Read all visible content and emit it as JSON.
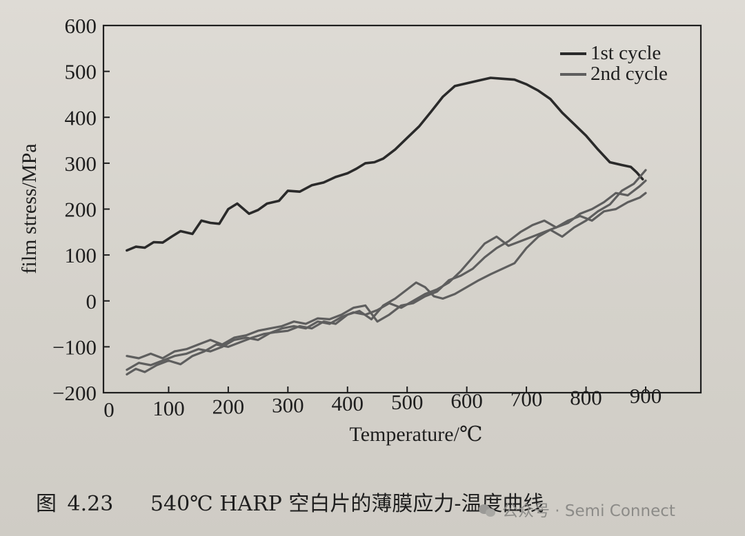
{
  "chart_data": {
    "type": "line",
    "title": "",
    "xlabel": "Temperature/℃",
    "ylabel": "film stress/MPa",
    "xlim": [
      0,
      1000
    ],
    "ylim": [
      -200,
      600
    ],
    "xticks": [
      0,
      100,
      200,
      300,
      400,
      500,
      600,
      700,
      800,
      900
    ],
    "yticks": [
      600,
      500,
      400,
      300,
      200,
      100,
      0,
      -100,
      -200
    ],
    "grid": false,
    "legend": "top-right",
    "legend_entries": [
      "1st cycle",
      "2nd cycle"
    ],
    "series": [
      {
        "name": "1st cycle",
        "color": "#2a2a2a",
        "points": [
          [
            30,
            110
          ],
          [
            45,
            118
          ],
          [
            60,
            116
          ],
          [
            75,
            128
          ],
          [
            90,
            127
          ],
          [
            105,
            140
          ],
          [
            120,
            152
          ],
          [
            140,
            146
          ],
          [
            155,
            175
          ],
          [
            170,
            170
          ],
          [
            185,
            168
          ],
          [
            200,
            200
          ],
          [
            215,
            212
          ],
          [
            235,
            190
          ],
          [
            250,
            198
          ],
          [
            265,
            212
          ],
          [
            285,
            218
          ],
          [
            300,
            240
          ],
          [
            320,
            238
          ],
          [
            340,
            252
          ],
          [
            360,
            258
          ],
          [
            380,
            270
          ],
          [
            400,
            278
          ],
          [
            415,
            288
          ],
          [
            430,
            300
          ],
          [
            445,
            302
          ],
          [
            460,
            310
          ],
          [
            480,
            330
          ],
          [
            500,
            355
          ],
          [
            520,
            380
          ],
          [
            540,
            412
          ],
          [
            560,
            445
          ],
          [
            580,
            468
          ],
          [
            600,
            474
          ],
          [
            620,
            480
          ],
          [
            640,
            486
          ],
          [
            660,
            484
          ],
          [
            680,
            482
          ],
          [
            700,
            472
          ],
          [
            720,
            458
          ],
          [
            740,
            440
          ],
          [
            760,
            410
          ],
          [
            780,
            385
          ],
          [
            800,
            360
          ],
          [
            820,
            330
          ],
          [
            840,
            302
          ],
          [
            860,
            296
          ],
          [
            875,
            292
          ],
          [
            885,
            280
          ],
          [
            895,
            265
          ]
        ]
      },
      {
        "name": "2nd cycle",
        "color": "#5e5e5e",
        "points": [
          [
            30,
            -160
          ],
          [
            45,
            -148
          ],
          [
            60,
            -155
          ],
          [
            80,
            -140
          ],
          [
            100,
            -130
          ],
          [
            120,
            -138
          ],
          [
            140,
            -120
          ],
          [
            160,
            -110
          ],
          [
            180,
            -95
          ],
          [
            200,
            -100
          ],
          [
            220,
            -90
          ],
          [
            240,
            -80
          ],
          [
            260,
            -72
          ],
          [
            280,
            -68
          ],
          [
            300,
            -65
          ],
          [
            320,
            -55
          ],
          [
            340,
            -60
          ],
          [
            360,
            -45
          ],
          [
            380,
            -50
          ],
          [
            400,
            -30
          ],
          [
            420,
            -22
          ],
          [
            440,
            -40
          ],
          [
            460,
            -10
          ],
          [
            480,
            5
          ],
          [
            500,
            25
          ],
          [
            515,
            40
          ],
          [
            530,
            30
          ],
          [
            545,
            10
          ],
          [
            560,
            5
          ],
          [
            580,
            15
          ],
          [
            600,
            30
          ],
          [
            620,
            45
          ],
          [
            640,
            58
          ],
          [
            660,
            70
          ],
          [
            680,
            82
          ],
          [
            700,
            115
          ],
          [
            720,
            140
          ],
          [
            740,
            155
          ],
          [
            760,
            140
          ],
          [
            780,
            160
          ],
          [
            800,
            175
          ],
          [
            820,
            195
          ],
          [
            840,
            210
          ],
          [
            860,
            240
          ],
          [
            880,
            255
          ],
          [
            890,
            270
          ],
          [
            900,
            285
          ]
        ]
      },
      {
        "name": "",
        "color": "#5e5e5e",
        "points": [
          [
            30,
            -120
          ],
          [
            50,
            -125
          ],
          [
            70,
            -115
          ],
          [
            90,
            -125
          ],
          [
            110,
            -110
          ],
          [
            130,
            -105
          ],
          [
            150,
            -95
          ],
          [
            170,
            -85
          ],
          [
            190,
            -95
          ],
          [
            210,
            -80
          ],
          [
            230,
            -75
          ],
          [
            250,
            -65
          ],
          [
            270,
            -60
          ],
          [
            290,
            -55
          ],
          [
            310,
            -45
          ],
          [
            330,
            -50
          ],
          [
            350,
            -38
          ],
          [
            370,
            -40
          ],
          [
            390,
            -30
          ],
          [
            410,
            -15
          ],
          [
            430,
            -10
          ],
          [
            450,
            -45
          ],
          [
            470,
            -30
          ],
          [
            490,
            -10
          ],
          [
            510,
            -5
          ],
          [
            530,
            10
          ],
          [
            550,
            20
          ],
          [
            570,
            45
          ],
          [
            590,
            55
          ],
          [
            610,
            70
          ],
          [
            630,
            95
          ],
          [
            650,
            115
          ],
          [
            670,
            130
          ],
          [
            690,
            150
          ],
          [
            710,
            165
          ],
          [
            730,
            175
          ],
          [
            750,
            160
          ],
          [
            770,
            170
          ],
          [
            790,
            190
          ],
          [
            810,
            200
          ],
          [
            830,
            215
          ],
          [
            850,
            235
          ],
          [
            870,
            230
          ],
          [
            890,
            250
          ],
          [
            900,
            262
          ]
        ]
      },
      {
        "name": "",
        "color": "#5e5e5e",
        "points": [
          [
            30,
            -150
          ],
          [
            50,
            -135
          ],
          [
            70,
            -140
          ],
          [
            90,
            -130
          ],
          [
            110,
            -120
          ],
          [
            130,
            -115
          ],
          [
            150,
            -105
          ],
          [
            170,
            -110
          ],
          [
            190,
            -100
          ],
          [
            210,
            -85
          ],
          [
            230,
            -80
          ],
          [
            250,
            -85
          ],
          [
            270,
            -70
          ],
          [
            290,
            -60
          ],
          [
            310,
            -55
          ],
          [
            330,
            -60
          ],
          [
            350,
            -45
          ],
          [
            370,
            -50
          ],
          [
            390,
            -35
          ],
          [
            410,
            -25
          ],
          [
            430,
            -30
          ],
          [
            450,
            -20
          ],
          [
            470,
            -5
          ],
          [
            490,
            -15
          ],
          [
            510,
            0
          ],
          [
            530,
            15
          ],
          [
            550,
            25
          ],
          [
            570,
            40
          ],
          [
            590,
            65
          ],
          [
            610,
            95
          ],
          [
            630,
            125
          ],
          [
            650,
            140
          ],
          [
            670,
            120
          ],
          [
            690,
            130
          ],
          [
            710,
            140
          ],
          [
            730,
            150
          ],
          [
            750,
            160
          ],
          [
            770,
            175
          ],
          [
            790,
            185
          ],
          [
            810,
            175
          ],
          [
            830,
            195
          ],
          [
            850,
            200
          ],
          [
            870,
            215
          ],
          [
            890,
            225
          ],
          [
            900,
            235
          ]
        ]
      }
    ]
  },
  "caption": {
    "figure_label": "图",
    "figure_number": "4.23",
    "text": "540℃ HARP 空白片的薄膜应力-温度曲线"
  },
  "watermark": {
    "text": "公众号 · Semi Connect",
    "icon": "wechat-icon"
  }
}
